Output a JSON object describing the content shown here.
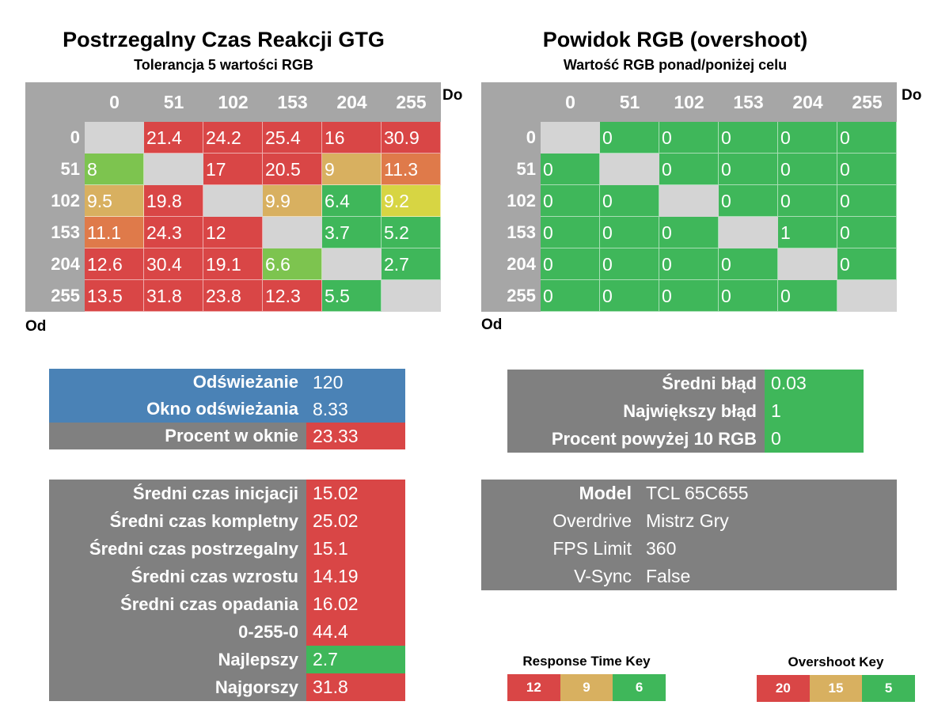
{
  "colors": {
    "red": "#d94646",
    "orange": "#df7a4a",
    "tan": "#d8b060",
    "yellow": "#d7d543",
    "lightgreen": "#7dc44f",
    "green": "#3fb75a",
    "diag": "#d4d4d4",
    "header_gray": "#a6a6a6",
    "panel_gray": "#808080",
    "blue": "#4a82b6"
  },
  "chart_data": [
    {
      "type": "heatmap",
      "title": "Postrzegalny Czas Reakcji GTG",
      "subtitle": "Tolerancja 5 wartości RGB",
      "xlabel": "Do",
      "ylabel": "Od",
      "x": [
        "0",
        "51",
        "102",
        "153",
        "204",
        "255"
      ],
      "y": [
        "0",
        "51",
        "102",
        "153",
        "204",
        "255"
      ],
      "values": [
        [
          "",
          "21.4",
          "24.2",
          "25.4",
          "16",
          "30.9"
        ],
        [
          "8",
          "",
          "17",
          "20.5",
          "9",
          "11.3"
        ],
        [
          "9.5",
          "19.8",
          "",
          "9.9",
          "6.4",
          "9.2"
        ],
        [
          "11.1",
          "24.3",
          "12",
          "",
          "3.7",
          "5.2"
        ],
        [
          "12.6",
          "30.4",
          "19.1",
          "6.6",
          "",
          "2.7"
        ],
        [
          "13.5",
          "31.8",
          "23.8",
          "12.3",
          "5.5",
          ""
        ]
      ],
      "cell_colors": [
        [
          "diag",
          "red",
          "red",
          "red",
          "red",
          "red"
        ],
        [
          "lightgreen",
          "diag",
          "red",
          "red",
          "tan",
          "orange"
        ],
        [
          "tan",
          "red",
          "diag",
          "tan",
          "green",
          "yellow"
        ],
        [
          "orange",
          "red",
          "red",
          "diag",
          "green",
          "green"
        ],
        [
          "red",
          "red",
          "red",
          "lightgreen",
          "diag",
          "green"
        ],
        [
          "red",
          "red",
          "red",
          "red",
          "green",
          "diag"
        ]
      ]
    },
    {
      "type": "heatmap",
      "title": "Powidok RGB (overshoot)",
      "subtitle": "Wartość RGB ponad/poniżej celu",
      "xlabel": "Do",
      "ylabel": "Od",
      "x": [
        "0",
        "51",
        "102",
        "153",
        "204",
        "255"
      ],
      "y": [
        "0",
        "51",
        "102",
        "153",
        "204",
        "255"
      ],
      "values": [
        [
          "",
          "0",
          "0",
          "0",
          "0",
          "0"
        ],
        [
          "0",
          "",
          "0",
          "0",
          "0",
          "0"
        ],
        [
          "0",
          "0",
          "",
          "0",
          "0",
          "0"
        ],
        [
          "0",
          "0",
          "0",
          "",
          "1",
          "0"
        ],
        [
          "0",
          "0",
          "0",
          "0",
          "",
          "0"
        ],
        [
          "0",
          "0",
          "0",
          "0",
          "0",
          ""
        ]
      ],
      "cell_colors": [
        [
          "diag",
          "green",
          "green",
          "green",
          "green",
          "green"
        ],
        [
          "green",
          "diag",
          "green",
          "green",
          "green",
          "green"
        ],
        [
          "green",
          "green",
          "diag",
          "green",
          "green",
          "green"
        ],
        [
          "green",
          "green",
          "green",
          "diag",
          "green",
          "green"
        ],
        [
          "green",
          "green",
          "green",
          "green",
          "diag",
          "green"
        ],
        [
          "green",
          "green",
          "green",
          "green",
          "green",
          "diag"
        ]
      ]
    }
  ],
  "refresh_panel": [
    {
      "label": "Odświeżanie",
      "value": "120",
      "label_color": "blue",
      "value_color": "blue"
    },
    {
      "label": "Okno odświeżania",
      "value": "8.33",
      "label_color": "blue",
      "value_color": "blue"
    },
    {
      "label": "Procent w oknie",
      "value": "23.33",
      "label_color": "panel_gray",
      "value_color": "red"
    }
  ],
  "error_panel": [
    {
      "label": "Średni błąd",
      "value": "0.03",
      "value_color": "green"
    },
    {
      "label": "Największy błąd",
      "value": "1",
      "value_color": "green"
    },
    {
      "label": "Procent powyżej 10 RGB",
      "value": "0",
      "value_color": "green"
    }
  ],
  "times_panel": [
    {
      "label": "Średni czas inicjacji",
      "value": "15.02",
      "value_color": "red"
    },
    {
      "label": "Średni czas kompletny",
      "value": "25.02",
      "value_color": "red"
    },
    {
      "label": "Średni czas postrzegalny",
      "value": "15.1",
      "value_color": "red"
    },
    {
      "label": "Średni czas wzrostu",
      "value": "14.19",
      "value_color": "red"
    },
    {
      "label": "Średni czas opadania",
      "value": "16.02",
      "value_color": "red"
    },
    {
      "label": "0-255-0",
      "value": "44.4",
      "value_color": "red"
    },
    {
      "label": "Najlepszy",
      "value": "2.7",
      "value_color": "green"
    },
    {
      "label": "Najgorszy",
      "value": "31.8",
      "value_color": "red"
    }
  ],
  "settings_panel": [
    {
      "label": "Model",
      "value": "TCL 65C655",
      "bold": true
    },
    {
      "label": "Overdrive",
      "value": "Mistrz Gry",
      "bold": false
    },
    {
      "label": "FPS Limit",
      "value": "360",
      "bold": false
    },
    {
      "label": "V-Sync",
      "value": "False",
      "bold": false
    }
  ],
  "response_key": {
    "title": "Response Time Key",
    "items": [
      {
        "label": "12",
        "color": "red"
      },
      {
        "label": "9",
        "color": "tan"
      },
      {
        "label": "6",
        "color": "green"
      }
    ]
  },
  "overshoot_key": {
    "title": "Overshoot Key",
    "items": [
      {
        "label": "20",
        "color": "red"
      },
      {
        "label": "15",
        "color": "tan"
      },
      {
        "label": "5",
        "color": "green"
      }
    ]
  }
}
